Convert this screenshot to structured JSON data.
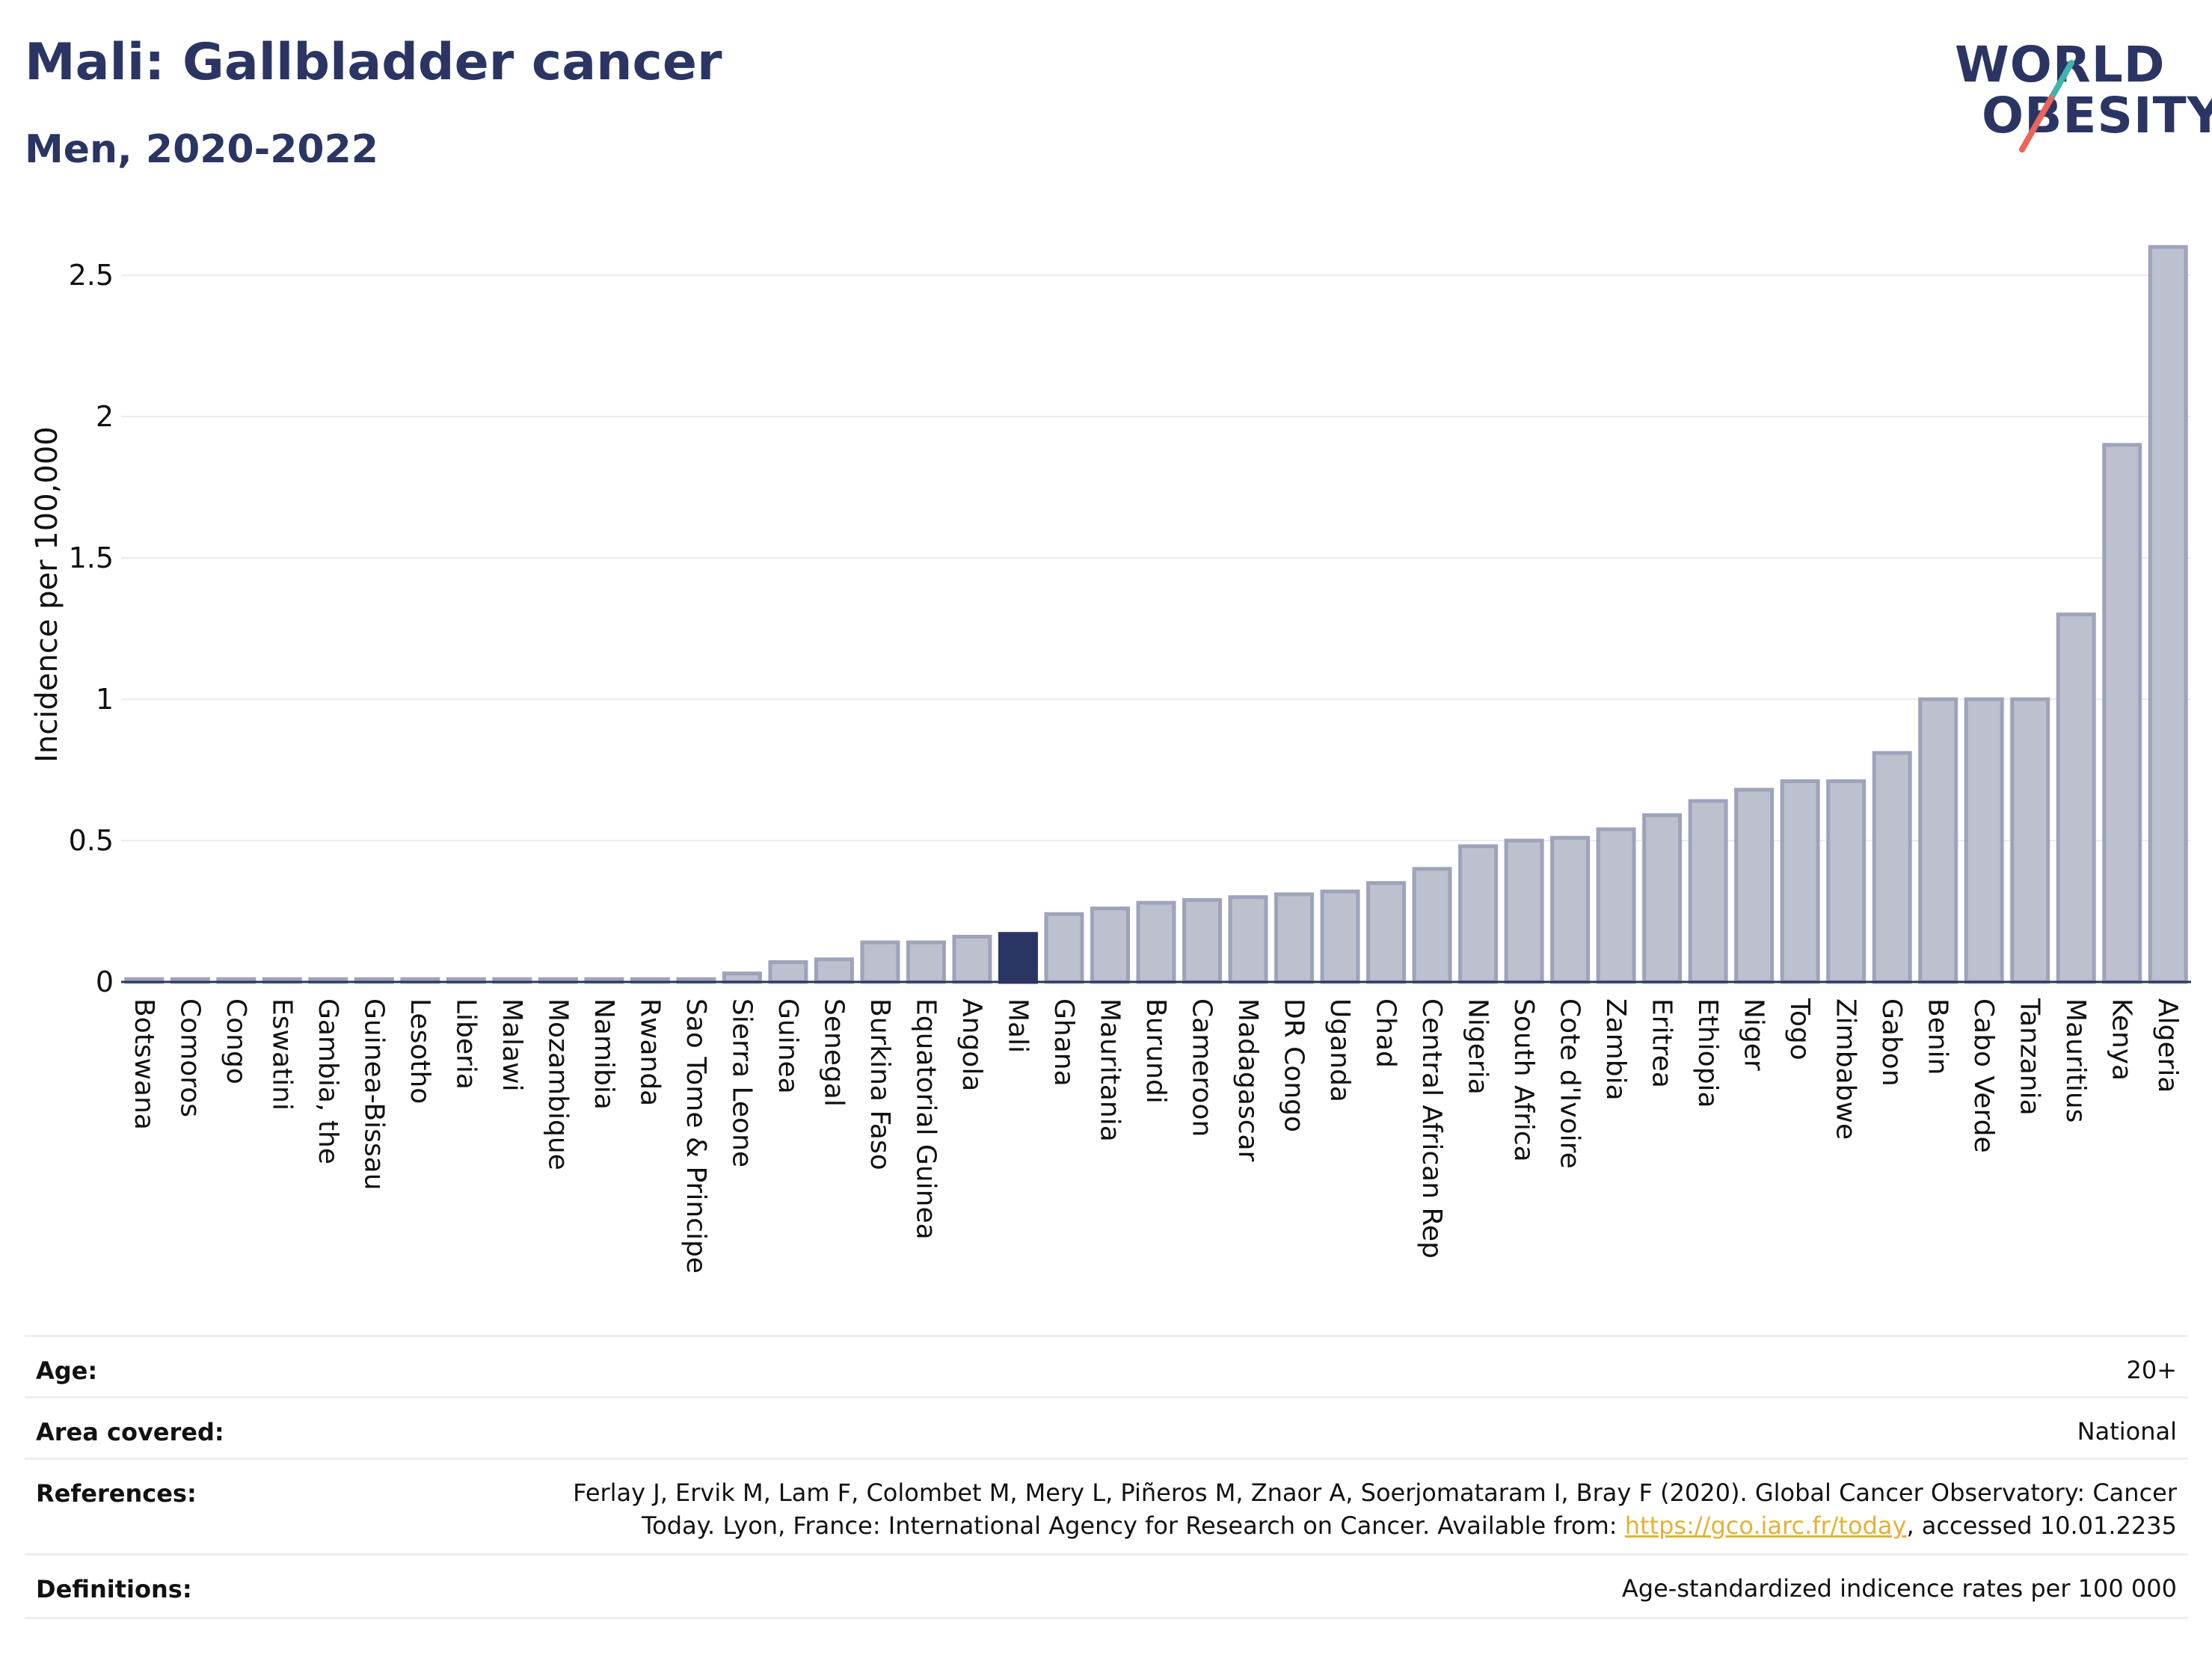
{
  "title": "Mali: Gallbladder cancer",
  "subtitle": "Men, 2020-2022",
  "logo": {
    "line1": "WORLD",
    "line2": "OBESITY"
  },
  "colors": {
    "brand": "#2a3563",
    "highlight": "#2a3563",
    "bar_fill": "#bcc0cf",
    "bar_stroke": "#9ea3ba",
    "logo_teal": "#3fb4b0",
    "logo_red": "#e8665a",
    "link": "#e3b237"
  },
  "chart_data": {
    "type": "bar",
    "ylabel": "Incidence per 100,000",
    "ylim": [
      0,
      2.6
    ],
    "yticks": [
      0,
      0.5,
      1,
      1.5,
      2,
      2.5
    ],
    "ytick_labels": [
      "0",
      "0.5",
      "1",
      "1.5",
      "2",
      "2.5"
    ],
    "grid": true,
    "highlight": "Mali",
    "categories": [
      "Botswana",
      "Comoros",
      "Congo",
      "Eswatini",
      "Gambia, the",
      "Guinea-Bissau",
      "Lesotho",
      "Liberia",
      "Malawi",
      "Mozambique",
      "Namibia",
      "Rwanda",
      "Sao Tome & Principe",
      "Sierra Leone",
      "Guinea",
      "Senegal",
      "Burkina Faso",
      "Equatorial Guinea",
      "Angola",
      "Mali",
      "Ghana",
      "Mauritania",
      "Burundi",
      "Cameroon",
      "Madagascar",
      "DR Congo",
      "Uganda",
      "Chad",
      "Central African Rep",
      "Nigeria",
      "South Africa",
      "Cote d'Ivoire",
      "Zambia",
      "Eritrea",
      "Ethiopia",
      "Niger",
      "Togo",
      "Zimbabwe",
      "Gabon",
      "Benin",
      "Cabo Verde",
      "Tanzania",
      "Mauritius",
      "Kenya",
      "Algeria"
    ],
    "values": [
      0.01,
      0.01,
      0.01,
      0.01,
      0.01,
      0.01,
      0.01,
      0.01,
      0.01,
      0.01,
      0.01,
      0.01,
      0.01,
      0.03,
      0.07,
      0.08,
      0.14,
      0.14,
      0.16,
      0.17,
      0.24,
      0.26,
      0.28,
      0.29,
      0.3,
      0.31,
      0.32,
      0.35,
      0.4,
      0.48,
      0.5,
      0.51,
      0.54,
      0.59,
      0.64,
      0.68,
      0.71,
      0.71,
      0.81,
      1.0,
      1.0,
      1.0,
      1.3,
      1.9,
      2.6
    ]
  },
  "meta": {
    "age": {
      "label": "Age:",
      "value": "20+"
    },
    "area": {
      "label": "Area covered:",
      "value": "National"
    },
    "references": {
      "label": "References:",
      "line1": "Ferlay J, Ervik M, Lam F, Colombet M, Mery L, Piñeros M, Znaor A, Soerjomataram I, Bray F (2020). Global Cancer Observatory: Cancer",
      "line2_pre": "Today. Lyon, France: International Agency for Research on Cancer. Available from: ",
      "link": "https://gco.iarc.fr/today",
      "line2_post": ", accessed 10.01.2235"
    },
    "definitions": {
      "label": "Definitions:",
      "value": "Age-standardized indicence rates per 100 000"
    }
  }
}
